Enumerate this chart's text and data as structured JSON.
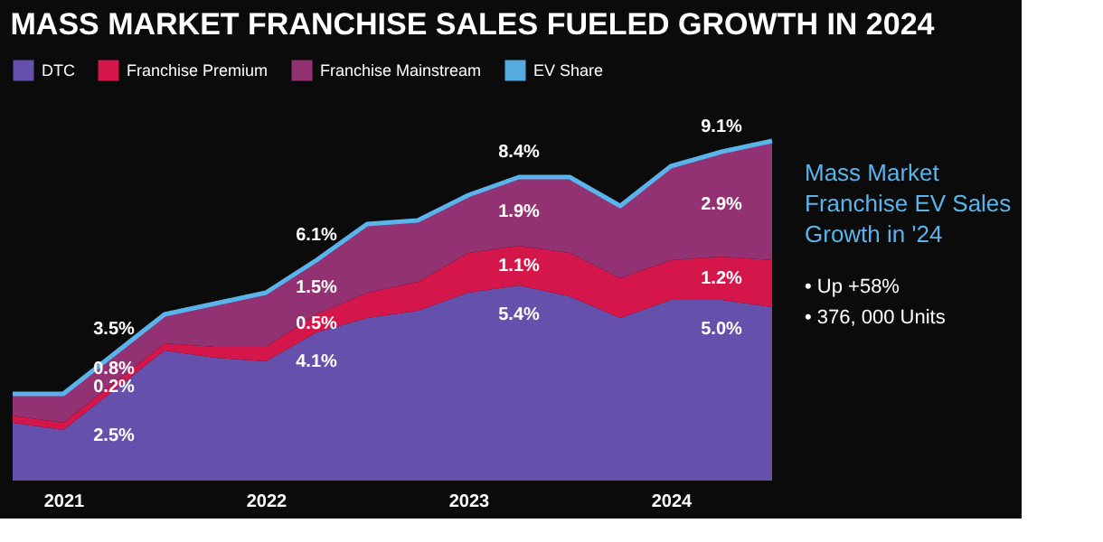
{
  "chart_data": {
    "type": "area",
    "stacked": true,
    "title": "MASS MARKET FRANCHISE SALES FUELED GROWTH IN 2024",
    "categories": [
      null,
      "2021",
      null,
      null,
      null,
      "2022",
      null,
      null,
      null,
      "2023",
      null,
      null,
      null,
      "2024",
      null,
      null
    ],
    "series": [
      {
        "name": "DTC",
        "color": "#6a55b5",
        "values": [
          1.6,
          1.4,
          2.5,
          3.6,
          3.4,
          3.3,
          4.1,
          4.5,
          4.7,
          5.2,
          5.4,
          5.1,
          4.5,
          5.0,
          5.0,
          4.8
        ],
        "value_labels": [
          null,
          null,
          "2.5%",
          null,
          null,
          null,
          "4.1%",
          null,
          null,
          null,
          "5.4%",
          null,
          null,
          null,
          "5.0%",
          null
        ]
      },
      {
        "name": "Franchise Premium",
        "color": "#e0174f",
        "values": [
          0.2,
          0.2,
          0.2,
          0.2,
          0.3,
          0.4,
          0.5,
          0.7,
          0.8,
          1.1,
          1.1,
          1.2,
          1.1,
          1.1,
          1.2,
          1.3
        ],
        "value_labels": [
          null,
          null,
          "0.2%",
          null,
          null,
          null,
          "0.5%",
          null,
          null,
          null,
          "1.1%",
          null,
          null,
          null,
          "1.2%",
          null
        ]
      },
      {
        "name": "Franchise Mainstream",
        "color": "#9a3579",
        "values": [
          0.6,
          0.8,
          0.8,
          0.8,
          1.2,
          1.5,
          1.5,
          1.9,
          1.7,
          1.6,
          1.9,
          2.1,
          2.0,
          2.6,
          2.9,
          3.3
        ],
        "value_labels": [
          null,
          null,
          "0.8%",
          null,
          null,
          null,
          "1.5%",
          null,
          null,
          null,
          "1.9%",
          null,
          null,
          null,
          "2.9%",
          null
        ]
      },
      {
        "name": "EV Share",
        "type": "line",
        "color": "#5ab4ec",
        "values": [
          2.4,
          2.4,
          3.5,
          4.6,
          4.9,
          5.2,
          6.1,
          7.1,
          7.2,
          7.9,
          8.4,
          8.4,
          7.6,
          8.7,
          9.1,
          9.4
        ],
        "value_labels": [
          null,
          null,
          "3.5%",
          null,
          null,
          null,
          "6.1%",
          null,
          null,
          null,
          "8.4%",
          null,
          null,
          null,
          "9.1%",
          null
        ]
      }
    ],
    "legend": "top",
    "annotations": [
      "Mass Market Franchise EV Sales Growth in '24",
      "• Up +58%",
      "• 376, 000 Units"
    ]
  }
}
